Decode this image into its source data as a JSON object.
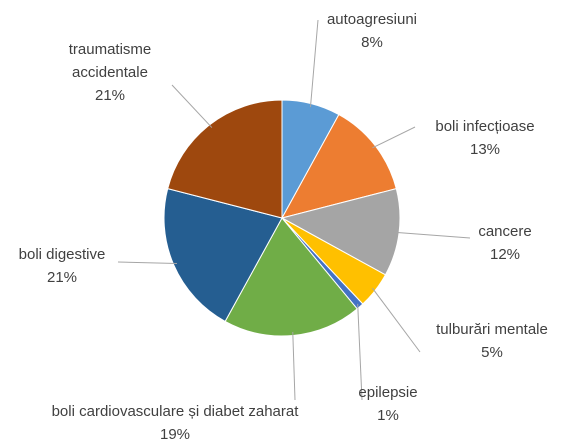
{
  "chart_data": {
    "type": "pie",
    "categories": [
      "autoagresiuni",
      "boli infecțioase",
      "cancere",
      "tulburări mentale",
      "epilepsie",
      "boli cardiovasculare și diabet zaharat",
      "boli digestive",
      "traumatisme accidentale"
    ],
    "values": [
      8,
      13,
      12,
      5,
      1,
      19,
      21,
      21
    ],
    "value_labels": [
      "8%",
      "13%",
      "12%",
      "5%",
      "1%",
      "19%",
      "21%",
      "21%"
    ],
    "colors": [
      "#5b9bd5",
      "#ed7d31",
      "#a5a5a5",
      "#ffc000",
      "#4472c4",
      "#70ad47",
      "#255e91",
      "#9e480e"
    ]
  }
}
